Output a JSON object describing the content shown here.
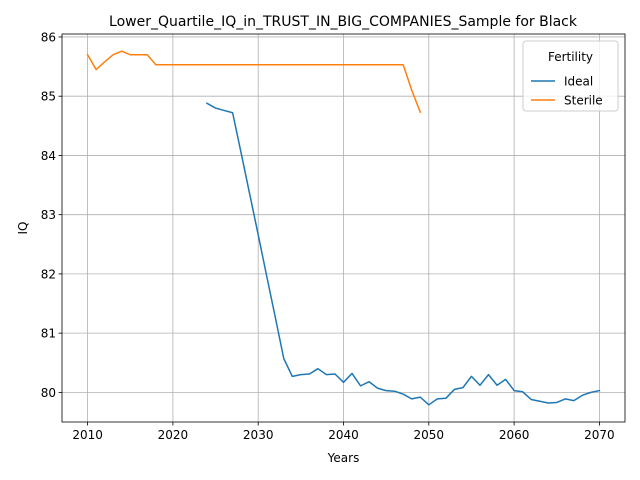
{
  "chart_data": {
    "type": "line",
    "title": "Lower_Quartile_IQ_in_TRUST_IN_BIG_COMPANIES_Sample for Black",
    "xlabel": "Years",
    "ylabel": "IQ",
    "xlim": [
      2007,
      2073
    ],
    "ylim": [
      79.5,
      86.05
    ],
    "xticks": [
      2010,
      2020,
      2030,
      2040,
      2050,
      2060,
      2070
    ],
    "yticks": [
      80,
      81,
      82,
      83,
      84,
      85,
      86
    ],
    "grid": true,
    "legend": {
      "title": "Fertility",
      "placement": "top-right"
    },
    "series": [
      {
        "name": "Ideal",
        "color": "#1f77b4",
        "x": [
          2024,
          2025,
          2026,
          2027,
          2028,
          2029,
          2030,
          2031,
          2032,
          2033,
          2034,
          2035,
          2036,
          2037,
          2038,
          2039,
          2040,
          2041,
          2042,
          2043,
          2044,
          2045,
          2046,
          2047,
          2048,
          2049,
          2050,
          2051,
          2052,
          2053,
          2054,
          2055,
          2056,
          2057,
          2058,
          2059,
          2060,
          2061,
          2062,
          2063,
          2064,
          2065,
          2066,
          2067,
          2068,
          2069,
          2070
        ],
        "values": [
          84.88,
          84.8,
          84.76,
          84.72,
          84.04,
          83.35,
          82.66,
          81.96,
          81.27,
          80.57,
          80.27,
          80.3,
          80.31,
          80.4,
          80.3,
          80.31,
          80.17,
          80.32,
          80.11,
          80.18,
          80.07,
          80.03,
          80.02,
          79.97,
          79.89,
          79.92,
          79.79,
          79.89,
          79.9,
          80.05,
          80.08,
          80.27,
          80.12,
          80.3,
          80.12,
          80.22,
          80.03,
          80.01,
          79.88,
          79.85,
          79.82,
          79.83,
          79.89,
          79.86,
          79.95,
          80.0,
          80.03
        ]
      },
      {
        "name": "Sterile",
        "color": "#ff7f0e",
        "x": [
          2010,
          2011,
          2012,
          2013,
          2014,
          2015,
          2016,
          2017,
          2018,
          2019,
          2020,
          2021,
          2022,
          2023,
          2024,
          2025,
          2026,
          2027,
          2028,
          2029,
          2030,
          2031,
          2032,
          2033,
          2034,
          2035,
          2036,
          2037,
          2038,
          2039,
          2040,
          2041,
          2042,
          2043,
          2044,
          2045,
          2046,
          2047,
          2048,
          2049
        ],
        "values": [
          85.7,
          85.45,
          85.58,
          85.7,
          85.76,
          85.7,
          85.7,
          85.7,
          85.53,
          85.53,
          85.53,
          85.53,
          85.53,
          85.53,
          85.53,
          85.53,
          85.53,
          85.53,
          85.53,
          85.53,
          85.53,
          85.53,
          85.53,
          85.53,
          85.53,
          85.53,
          85.53,
          85.53,
          85.53,
          85.53,
          85.53,
          85.53,
          85.53,
          85.53,
          85.53,
          85.53,
          85.53,
          85.53,
          85.1,
          84.73
        ]
      }
    ]
  }
}
